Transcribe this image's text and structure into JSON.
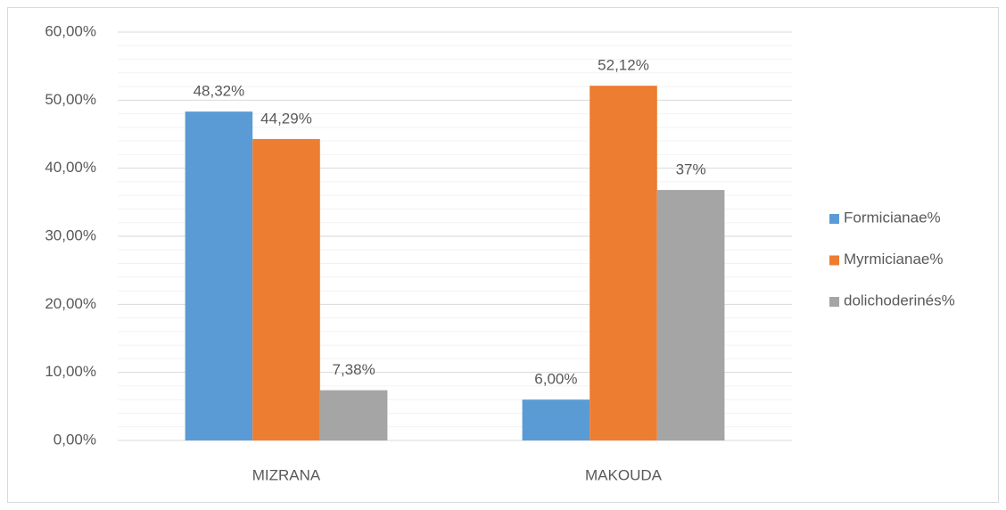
{
  "chart_data": {
    "type": "bar",
    "categories": [
      "MIZRANA",
      "MAKOUDA"
    ],
    "series": [
      {
        "name": "Formicianae%",
        "color": "#5b9bd5",
        "values": [
          48.32,
          6.0
        ],
        "value_labels": [
          "48,32%",
          "6,00%"
        ]
      },
      {
        "name": "Myrmicianae%",
        "color": "#ed7d31",
        "values": [
          44.29,
          52.12
        ],
        "value_labels": [
          "44,29%",
          "52,12%"
        ]
      },
      {
        "name": "dolichoderinés%",
        "color": "#a5a5a5",
        "values": [
          7.38,
          36.8
        ],
        "value_labels": [
          "7,38%",
          "37%"
        ]
      }
    ],
    "ylim": [
      0,
      60
    ],
    "yticks": [
      {
        "value": 0,
        "label": "0,00%"
      },
      {
        "value": 10,
        "label": "10,00%"
      },
      {
        "value": 20,
        "label": "20,00%"
      },
      {
        "value": 30,
        "label": "30,00%"
      },
      {
        "value": 40,
        "label": "40,00%"
      },
      {
        "value": 50,
        "label": "50,00%"
      },
      {
        "value": 60,
        "label": "60,00%"
      }
    ],
    "minor_yticks": [
      2,
      4,
      6,
      8,
      12,
      14,
      16,
      18,
      22,
      24,
      26,
      28,
      32,
      34,
      36,
      38,
      42,
      44,
      46,
      48,
      52,
      54,
      56,
      58
    ],
    "grid": true,
    "legend": "right"
  }
}
